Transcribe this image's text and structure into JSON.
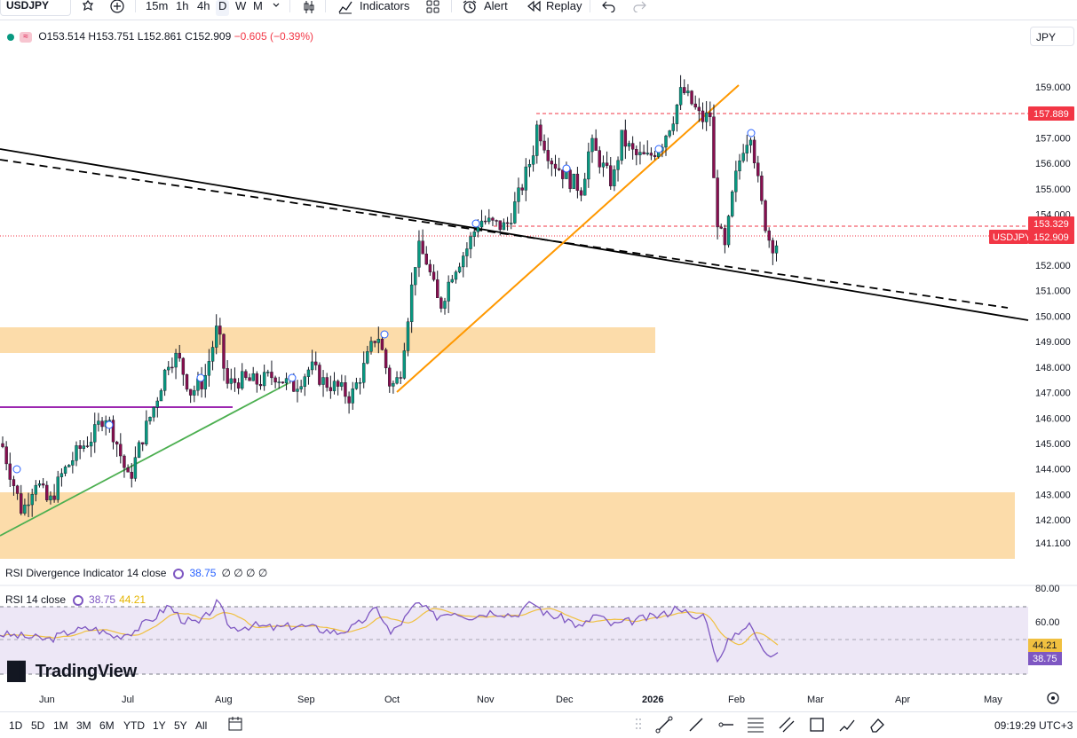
{
  "toolbar": {
    "symbol": "USDJPY",
    "intervals": [
      "15m",
      "1h",
      "4h",
      "D",
      "W",
      "M"
    ],
    "active_interval": "D",
    "indicators_label": "Indicators",
    "alert_label": "Alert",
    "replay_label": "Replay"
  },
  "legend": {
    "open": "O153.514",
    "high": "H153.751",
    "low": "L152.861",
    "close": "C152.909",
    "change": "−0.605 (−0.39%)",
    "currency": "JPY"
  },
  "price_pane": {
    "ticks": [
      "159.000",
      "157.000",
      "156.000",
      "155.000",
      "154.000",
      "152.000",
      "151.000",
      "150.000",
      "149.000",
      "148.000",
      "147.000",
      "146.000",
      "145.000",
      "144.000",
      "143.000",
      "142.000",
      "141.100"
    ],
    "level_high_label": "157.889",
    "level_mid_label": "153.329",
    "symbol_tag": "USDJPY",
    "last_price_label": "152.909",
    "colors": {
      "up": "#089981",
      "down": "#880e4f",
      "zone": "#fcdcaa",
      "orange_line": "#ff9800",
      "green_line": "#4caf50",
      "purple_line": "#9c27b0",
      "level": "#f23645"
    }
  },
  "rsi_div": {
    "label": "RSI Divergence Indicator 14 close",
    "value": "38.75",
    "nulls": "∅ ∅ ∅ ∅"
  },
  "rsi": {
    "label": "RSI 14 close",
    "value": "38.75",
    "ma_value": "44.21",
    "ticks": [
      "80.00",
      "60.00"
    ],
    "value_label": "38.75",
    "ma_label": "44.21",
    "colors": {
      "rsi": "#7e57c2",
      "ma": "#f0c040",
      "band": "#ede7f6"
    }
  },
  "time_axis": [
    "Jun",
    "Jul",
    "Aug",
    "Sep",
    "Oct",
    "Nov",
    "Dec",
    "2026",
    "Feb",
    "Mar",
    "Apr",
    "May"
  ],
  "watermark": "TradingView",
  "bottom": {
    "ranges": [
      "1D",
      "5D",
      "1M",
      "3M",
      "6M",
      "YTD",
      "1Y",
      "5Y",
      "All"
    ],
    "clock": "09:19:29 UTC+3"
  },
  "chart_data": {
    "type": "candlestick",
    "symbol": "USDJPY",
    "timeframe": "D",
    "approx_close_path": [
      {
        "x": "Jun",
        "y": 144.0
      },
      {
        "x": "Jul",
        "y": 144.5
      },
      {
        "x": "Aug",
        "y": 147.8
      },
      {
        "x": "Sep",
        "y": 147.3
      },
      {
        "x": "Oct",
        "y": 147.5
      },
      {
        "x": "Nov",
        "y": 153.5
      },
      {
        "x": "Dec",
        "y": 155.8
      },
      {
        "x": "2026",
        "y": 157.2
      },
      {
        "x": "Feb",
        "y": 155.0
      },
      {
        "x": "Feb",
        "y": 152.9
      }
    ],
    "levels": [
      157.889,
      153.329
    ],
    "last_close": 152.909,
    "rsi_last": 38.75,
    "rsi_ma_last": 44.21,
    "rsi_band": [
      30,
      70
    ]
  }
}
